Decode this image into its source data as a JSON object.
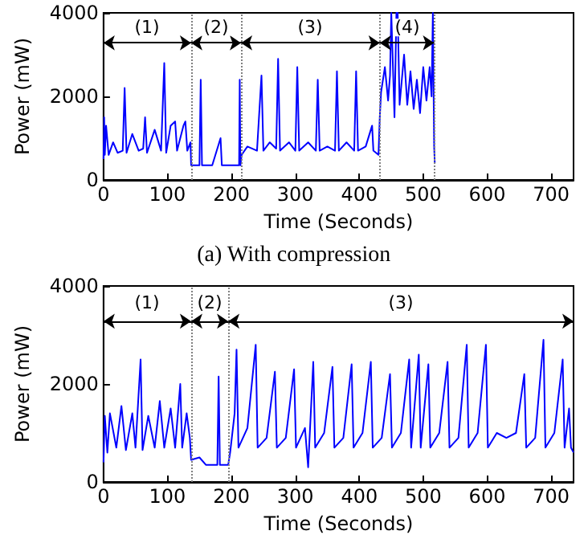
{
  "chart_data": [
    {
      "type": "line",
      "xlabel": "Time (Seconds)",
      "ylabel": "Power (mW)",
      "annotations": [
        "(a) With compression",
        {
          "text": "(1)",
          "x": 68,
          "y": 3650
        },
        {
          "text": "(2)",
          "x": 176,
          "y": 3650
        },
        {
          "text": "(3)",
          "x": 323,
          "y": 3650
        },
        {
          "text": "(4)",
          "x": 475,
          "y": 3650
        }
      ],
      "xlim": [
        0,
        735
      ],
      "xticks": [
        0,
        100,
        200,
        300,
        400,
        500,
        600,
        700
      ],
      "ylim": [
        0,
        4000
      ],
      "yticks": [
        0,
        2000,
        4000
      ],
      "grid": false,
      "marker": "none",
      "line_style": "solid",
      "series": [
        {
          "color": "#0000ff",
          "x": [
            0,
            1,
            2,
            4,
            8,
            15,
            22,
            30,
            33,
            36,
            45,
            55,
            62,
            65,
            68,
            80,
            90,
            95,
            98,
            105,
            112,
            115,
            125,
            128,
            131,
            136,
            137,
            140,
            150,
            152,
            154,
            170,
            183,
            185,
            200,
            212,
            213,
            214,
            216,
            225,
            240,
            247,
            250,
            260,
            270,
            273,
            276,
            290,
            300,
            303,
            306,
            320,
            332,
            335,
            338,
            350,
            362,
            365,
            368,
            380,
            392,
            395,
            398,
            410,
            420,
            422,
            430,
            432,
            434,
            440,
            445,
            448,
            450,
            455,
            458,
            460,
            463,
            470,
            475,
            480,
            485,
            490,
            495,
            500,
            505,
            510,
            513,
            515,
            516,
            517,
            518
          ],
          "values": [
            500,
            1500,
            600,
            1300,
            600,
            900,
            650,
            700,
            2200,
            650,
            1100,
            700,
            750,
            1500,
            650,
            1200,
            700,
            2800,
            650,
            1300,
            1400,
            700,
            1300,
            1400,
            700,
            900,
            350,
            350,
            350,
            2400,
            350,
            350,
            1000,
            350,
            350,
            350,
            2400,
            350,
            600,
            800,
            700,
            2500,
            700,
            900,
            750,
            2900,
            700,
            900,
            700,
            2700,
            700,
            900,
            700,
            2400,
            700,
            800,
            700,
            2600,
            700,
            900,
            700,
            2600,
            700,
            800,
            1300,
            700,
            600,
            1500,
            2100,
            2700,
            1900,
            2500,
            4000,
            1500,
            4000,
            4000,
            1800,
            3000,
            1800,
            2600,
            1700,
            2400,
            1600,
            2700,
            1900,
            2700,
            2000,
            4000,
            4000,
            800,
            400
          ]
        }
      ],
      "ref_lines": [
        {
          "axis": "x",
          "value": 137,
          "color": "#808080",
          "line_style": "dotted"
        },
        {
          "axis": "x",
          "value": 215,
          "color": "#808080",
          "line_style": "dotted"
        },
        {
          "axis": "x",
          "value": 432,
          "color": "#808080",
          "line_style": "dotted"
        },
        {
          "axis": "x",
          "value": 517,
          "color": "#808080",
          "line_style": "dotted"
        }
      ]
    },
    {
      "type": "line",
      "xlabel": "Time (Seconds)",
      "ylabel": "Power (mW)",
      "annotations": [
        {
          "text": "(1)",
          "x": 68,
          "y": 3650
        },
        {
          "text": "(2)",
          "x": 166,
          "y": 3650
        },
        {
          "text": "(3)",
          "x": 465,
          "y": 3650
        }
      ],
      "xlim": [
        0,
        735
      ],
      "xticks": [
        0,
        100,
        200,
        300,
        400,
        500,
        600,
        700
      ],
      "ylim": [
        0,
        4000
      ],
      "yticks": [
        0,
        2000,
        4000
      ],
      "grid": false,
      "marker": "none",
      "line_style": "solid",
      "series": [
        {
          "color": "#0000ff",
          "x": [
            0,
            2,
            6,
            10,
            20,
            28,
            35,
            45,
            50,
            58,
            61,
            70,
            80,
            88,
            95,
            105,
            112,
            120,
            123,
            130,
            135,
            137,
            150,
            160,
            170,
            178,
            180,
            182,
            190,
            195,
            198,
            205,
            208,
            211,
            225,
            238,
            241,
            255,
            268,
            271,
            285,
            298,
            301,
            315,
            320,
            328,
            331,
            345,
            358,
            361,
            375,
            388,
            391,
            405,
            418,
            421,
            435,
            448,
            451,
            465,
            478,
            481,
            493,
            496,
            508,
            511,
            525,
            538,
            541,
            555,
            568,
            571,
            585,
            598,
            601,
            615,
            630,
            645,
            658,
            661,
            675,
            688,
            691,
            705,
            718,
            721,
            728,
            731,
            735
          ],
          "values": [
            400,
            1350,
            600,
            1400,
            700,
            1550,
            650,
            1400,
            700,
            2500,
            650,
            1350,
            700,
            1650,
            700,
            1500,
            700,
            2000,
            700,
            1400,
            900,
            450,
            500,
            350,
            350,
            350,
            2150,
            350,
            350,
            350,
            600,
            1400,
            2700,
            700,
            1100,
            2800,
            700,
            900,
            2250,
            700,
            900,
            2300,
            700,
            1100,
            300,
            2450,
            700,
            1000,
            2350,
            700,
            900,
            2400,
            700,
            1000,
            2450,
            700,
            900,
            2200,
            700,
            1000,
            2500,
            700,
            2600,
            700,
            2400,
            700,
            1000,
            2450,
            700,
            900,
            2800,
            700,
            1000,
            2800,
            700,
            1000,
            900,
            1000,
            2200,
            700,
            900,
            2900,
            700,
            1000,
            2500,
            700,
            1500,
            700,
            600
          ]
        }
      ],
      "ref_lines": [
        {
          "axis": "x",
          "value": 137,
          "color": "#808080",
          "line_style": "dotted"
        },
        {
          "axis": "x",
          "value": 195,
          "color": "#808080",
          "line_style": "dotted"
        }
      ]
    }
  ]
}
